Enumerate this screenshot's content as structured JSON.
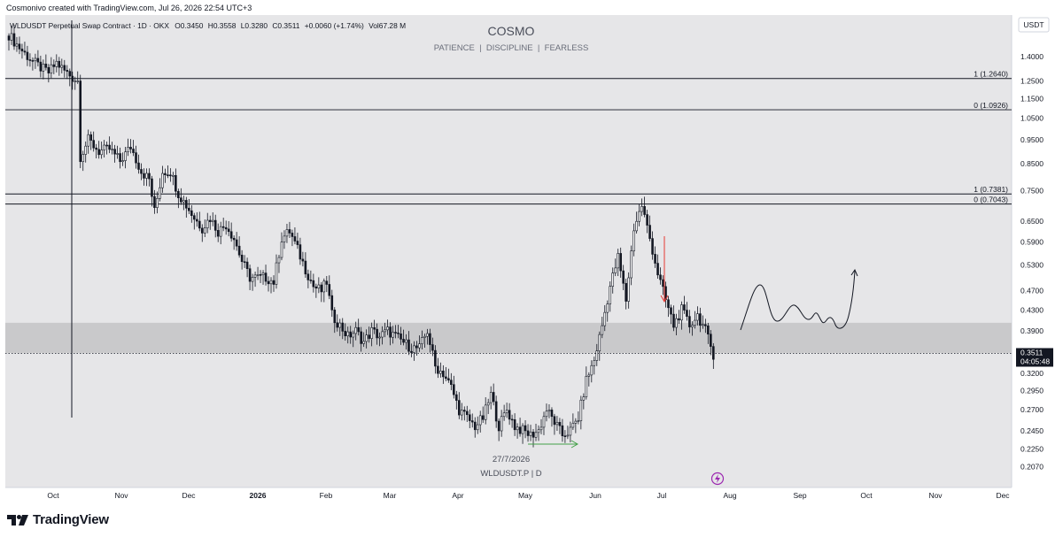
{
  "header": {
    "created_line": "Cosmonivo created with TradingView.com, Jul 26, 2026 22:54 UTC+3"
  },
  "legend": {
    "symbol": "WLDUSDT Perpetual Swap Contract · 1D · OKX",
    "open": "O0.3450",
    "high": "H0.3558",
    "low": "L0.3280",
    "close": "C0.3511",
    "change": "+0.0060 (+1.74%)",
    "volume": "Vol67.28 M"
  },
  "watermark": {
    "title": "COSMO",
    "subtitle": "PATIENCE  |  DISCIPLINE  |  FEARLESS"
  },
  "currency_label": "USDT",
  "footer": {
    "date": "27/7/2026",
    "symbol": "WLDUSDT.P | D",
    "brand": "TradingView"
  },
  "colors": {
    "up": "#26a69a",
    "down": "#ef5350",
    "candle": "#131722",
    "zone": "#c7c7c7",
    "plot_bg": "#e6e6e8",
    "arrow_red": "#e53935",
    "arrow_green": "#43a047",
    "price_tag": "#131722",
    "lightning": "#9c27b0"
  },
  "chart_data": {
    "type": "candlestick",
    "timeframe": "1D",
    "x_axis": [
      "Oct",
      "Nov",
      "Dec",
      "2026",
      "Feb",
      "Mar",
      "Apr",
      "May",
      "Jun",
      "Jul",
      "Aug",
      "Sep",
      "Oct",
      "Nov",
      "Dec"
    ],
    "y_ticks": [
      "1.4000",
      "1.2500",
      "1.1500",
      "1.0500",
      "0.9500",
      "0.8500",
      "0.7500",
      "0.6500",
      "0.5900",
      "0.5300",
      "0.4700",
      "0.4300",
      "0.3900",
      "0.3200",
      "0.2950",
      "0.2700",
      "0.2450",
      "0.2250",
      "0.2070"
    ],
    "y_scale": "log",
    "current_price": "0.3511",
    "countdown": "04:05:48",
    "horizontal_levels": [
      {
        "label": "1 (1.2640)",
        "value": 1.264
      },
      {
        "label": "0 (1.0926)",
        "value": 1.0926
      },
      {
        "label": "1 (0.7381)",
        "value": 0.7381
      },
      {
        "label": "0 (0.7043)",
        "value": 0.7043
      }
    ],
    "support_zone": [
      0.352,
      0.405
    ],
    "series_close": [
      [
        0,
        1.55
      ],
      [
        3,
        1.48
      ],
      [
        6,
        1.42
      ],
      [
        9,
        1.37
      ],
      [
        12,
        1.33
      ],
      [
        15,
        1.3
      ],
      [
        18,
        1.36
      ],
      [
        21,
        1.31
      ],
      [
        24,
        1.27
      ],
      [
        26,
        1.25
      ],
      [
        27,
        0.88
      ],
      [
        30,
        0.95
      ],
      [
        34,
        0.9
      ],
      [
        38,
        0.91
      ],
      [
        42,
        0.86
      ],
      [
        46,
        0.92
      ],
      [
        50,
        0.82
      ],
      [
        53,
        0.79
      ],
      [
        55,
        0.68
      ],
      [
        58,
        0.82
      ],
      [
        61,
        0.82
      ],
      [
        64,
        0.74
      ],
      [
        67,
        0.7
      ],
      [
        70,
        0.66
      ],
      [
        73,
        0.63
      ],
      [
        76,
        0.66
      ],
      [
        79,
        0.62
      ],
      [
        82,
        0.64
      ],
      [
        85,
        0.6
      ],
      [
        88,
        0.54
      ],
      [
        91,
        0.5
      ],
      [
        94,
        0.5
      ],
      [
        97,
        0.5
      ],
      [
        100,
        0.49
      ],
      [
        103,
        0.6
      ],
      [
        106,
        0.62
      ],
      [
        109,
        0.57
      ],
      [
        112,
        0.52
      ],
      [
        115,
        0.48
      ],
      [
        118,
        0.47
      ],
      [
        120,
        0.49
      ],
      [
        122,
        0.42
      ],
      [
        125,
        0.4
      ],
      [
        128,
        0.38
      ],
      [
        131,
        0.39
      ],
      [
        134,
        0.37
      ],
      [
        137,
        0.39
      ],
      [
        140,
        0.38
      ],
      [
        143,
        0.39
      ],
      [
        146,
        0.38
      ],
      [
        149,
        0.37
      ],
      [
        152,
        0.36
      ],
      [
        155,
        0.36
      ],
      [
        158,
        0.39
      ],
      [
        161,
        0.33
      ],
      [
        164,
        0.32
      ],
      [
        167,
        0.3
      ],
      [
        170,
        0.27
      ],
      [
        173,
        0.26
      ],
      [
        176,
        0.25
      ],
      [
        179,
        0.26
      ],
      [
        182,
        0.29
      ],
      [
        185,
        0.25
      ],
      [
        188,
        0.27
      ],
      [
        191,
        0.25
      ],
      [
        194,
        0.245
      ],
      [
        197,
        0.24
      ],
      [
        200,
        0.245
      ],
      [
        203,
        0.27
      ],
      [
        206,
        0.255
      ],
      [
        209,
        0.24
      ],
      [
        212,
        0.245
      ],
      [
        215,
        0.26
      ],
      [
        218,
        0.31
      ],
      [
        221,
        0.34
      ],
      [
        224,
        0.4
      ],
      [
        227,
        0.48
      ],
      [
        230,
        0.55
      ],
      [
        233,
        0.45
      ],
      [
        236,
        0.63
      ],
      [
        239,
        0.7
      ],
      [
        242,
        0.6
      ],
      [
        245,
        0.51
      ],
      [
        248,
        0.45
      ],
      [
        251,
        0.4
      ],
      [
        254,
        0.43
      ],
      [
        257,
        0.4
      ],
      [
        260,
        0.42
      ],
      [
        263,
        0.39
      ],
      [
        266,
        0.35
      ]
    ]
  }
}
